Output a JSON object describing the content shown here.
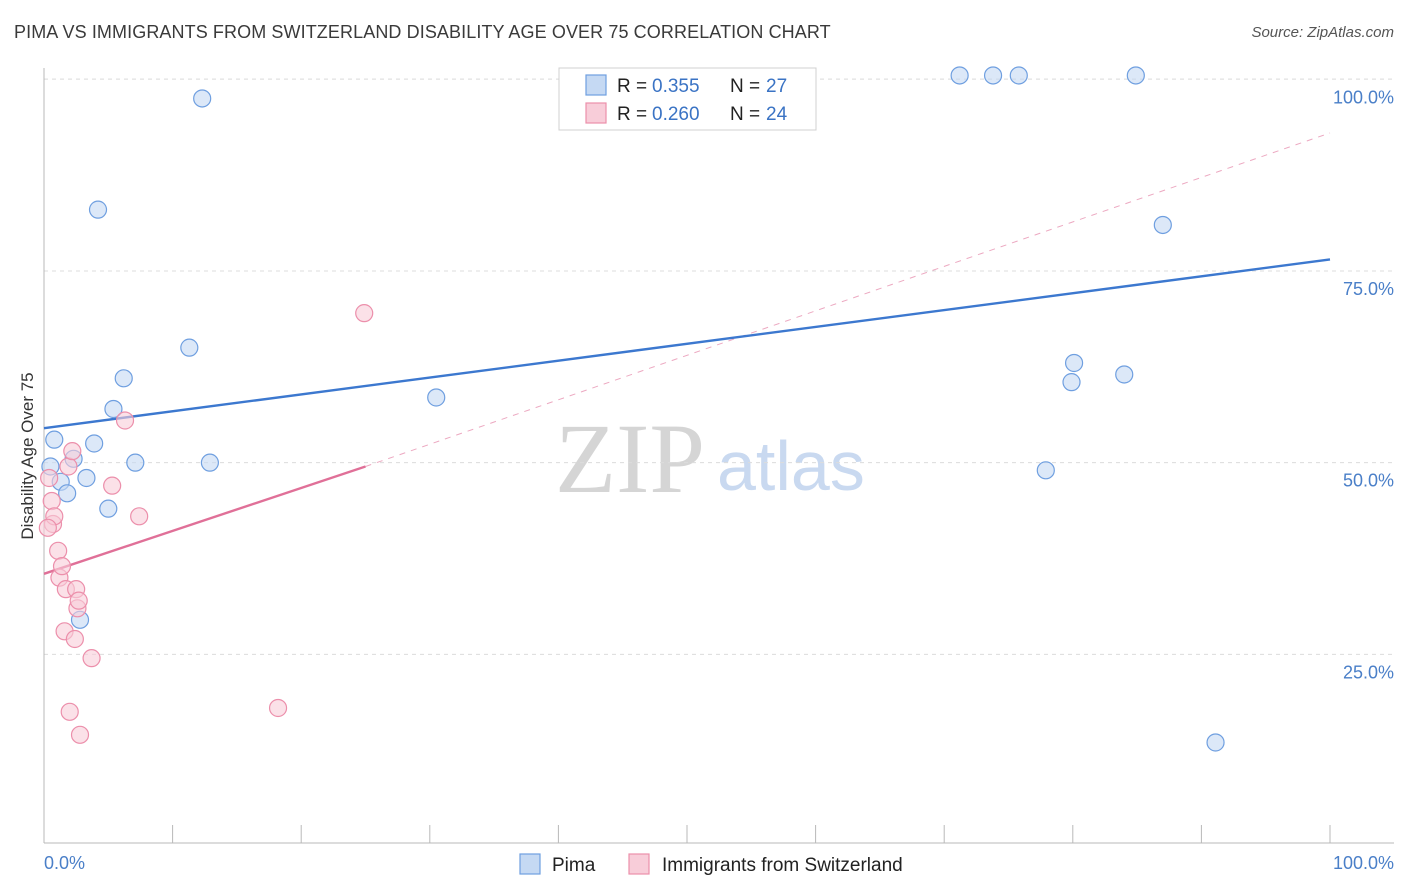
{
  "header": {
    "title": "PIMA VS IMMIGRANTS FROM SWITZERLAND DISABILITY AGE OVER 75 CORRELATION CHART",
    "source": "Source: ZipAtlas.com"
  },
  "watermark": {
    "zip": "ZIP",
    "atlas": "atlas"
  },
  "chart_data": {
    "type": "scatter",
    "title": "PIMA VS IMMIGRANTS FROM SWITZERLAND DISABILITY AGE OVER 75 CORRELATION CHART",
    "xlabel": "",
    "ylabel": "Disability Age Over 75",
    "xlim": [
      0,
      100
    ],
    "ylim": [
      0,
      102
    ],
    "x_tick_labels": {
      "left": "0.0%",
      "right": "100.0%"
    },
    "y_ticks": [
      {
        "value": 25,
        "label": "25.0%"
      },
      {
        "value": 50,
        "label": "50.0%"
      },
      {
        "value": 75,
        "label": "75.0%"
      },
      {
        "value": 100,
        "label": "100.0%"
      }
    ],
    "legend_box": [
      {
        "r_label": "R = ",
        "r_value": "0.355",
        "n_label": "N = ",
        "n_value": "27"
      },
      {
        "r_label": "R = ",
        "r_value": "0.260",
        "n_label": "N = ",
        "n_value": "24"
      }
    ],
    "series": [
      {
        "name": "Pima",
        "color": "#6f9fe0",
        "fill": "#c5d9f3",
        "line_color": "#3c78cf",
        "trend": {
          "x0": 0,
          "y0": 54.5,
          "x1": 100,
          "y1": 76.5
        },
        "points": [
          [
            0.5,
            49.5
          ],
          [
            0.8,
            53
          ],
          [
            1.3,
            47.5
          ],
          [
            1.8,
            46
          ],
          [
            2.3,
            50.5
          ],
          [
            3.3,
            48
          ],
          [
            3.9,
            52.5
          ],
          [
            5.0,
            44
          ],
          [
            5.4,
            57
          ],
          [
            6.2,
            61
          ],
          [
            7.1,
            50
          ],
          [
            11.3,
            65
          ],
          [
            12.9,
            50
          ],
          [
            4.2,
            83
          ],
          [
            12.3,
            97.5
          ],
          [
            2.8,
            29.5
          ],
          [
            30.5,
            58.5
          ],
          [
            71.2,
            100.5
          ],
          [
            73.8,
            100.5
          ],
          [
            75.8,
            100.5
          ],
          [
            84.9,
            100.5
          ],
          [
            87.0,
            81
          ],
          [
            77.9,
            49
          ],
          [
            79.9,
            60.5
          ],
          [
            80.1,
            63
          ],
          [
            84.0,
            61.5
          ],
          [
            91.1,
            13.5
          ]
        ]
      },
      {
        "name": "Immigrants from Switzerland",
        "color": "#ec8fab",
        "fill": "#f8cdd9",
        "line_color": "#e07098",
        "trend": {
          "x0": 0,
          "y0": 35.5,
          "x1": 25,
          "y1": 49.5
        },
        "trend_ext": {
          "x0": 25,
          "y0": 49.5,
          "x1": 100,
          "y1": 93
        },
        "points": [
          [
            0.4,
            48
          ],
          [
            0.6,
            45
          ],
          [
            0.7,
            42
          ],
          [
            0.8,
            43
          ],
          [
            1.1,
            38.5
          ],
          [
            1.2,
            35
          ],
          [
            1.4,
            36.5
          ],
          [
            1.6,
            28
          ],
          [
            1.7,
            33.5
          ],
          [
            1.9,
            49.5
          ],
          [
            2.0,
            17.5
          ],
          [
            2.2,
            51.5
          ],
          [
            2.4,
            27
          ],
          [
            2.5,
            33.5
          ],
          [
            2.6,
            31
          ],
          [
            2.7,
            32
          ],
          [
            2.8,
            14.5
          ],
          [
            3.7,
            24.5
          ],
          [
            5.3,
            47
          ],
          [
            6.3,
            55.5
          ],
          [
            7.4,
            43
          ],
          [
            18.2,
            18
          ],
          [
            24.9,
            69.5
          ],
          [
            0.3,
            41.5
          ]
        ]
      }
    ],
    "legend": [
      "Pima",
      "Immigrants from Switzerland"
    ]
  }
}
